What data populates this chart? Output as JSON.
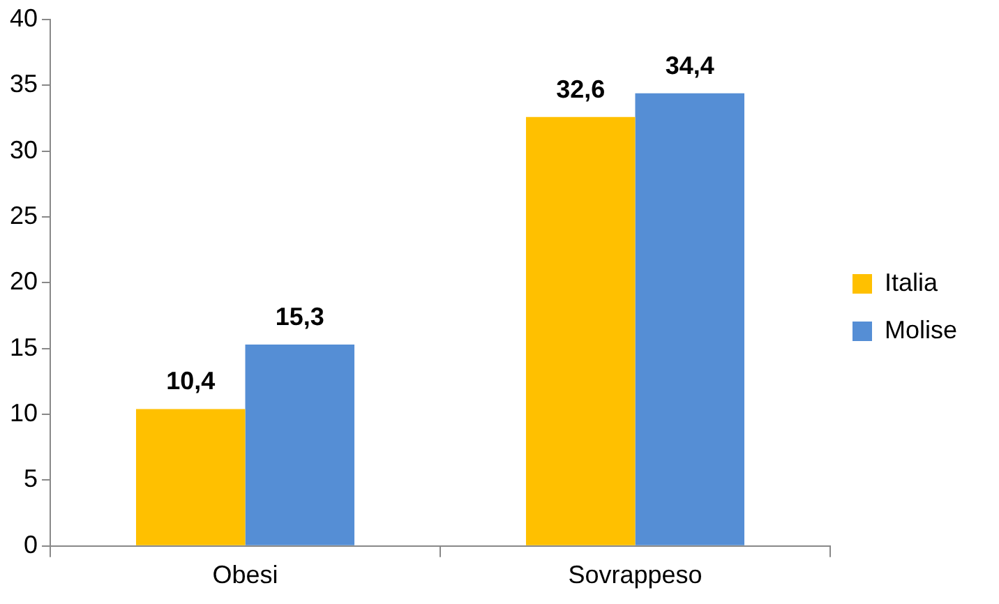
{
  "chart_data": {
    "type": "bar",
    "categories": [
      "Obesi",
      "Sovrappeso"
    ],
    "series": [
      {
        "name": "Italia",
        "color": "#ffc000",
        "values": [
          10.4,
          32.6
        ],
        "value_labels": [
          "10,4",
          "32,6"
        ]
      },
      {
        "name": "Molise",
        "color": "#558ed5",
        "values": [
          15.3,
          34.4
        ],
        "value_labels": [
          "15,3",
          "34,4"
        ]
      }
    ],
    "ylim": [
      0,
      40
    ],
    "yticks": [
      0,
      5,
      10,
      15,
      20,
      25,
      30,
      35,
      40
    ],
    "grid": false,
    "legend": "right"
  }
}
